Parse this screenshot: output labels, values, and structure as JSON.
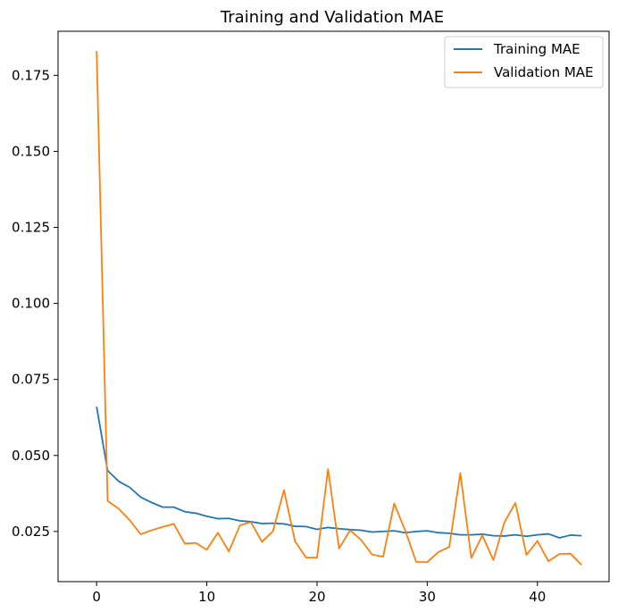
{
  "chart_data": {
    "type": "line",
    "title": "Training and Validation MAE",
    "xlabel": "",
    "ylabel": "",
    "xlim": [
      -3.5,
      46.5
    ],
    "ylim": [
      0.0085,
      0.1895
    ],
    "x_ticks": [
      0,
      10,
      20,
      30,
      40
    ],
    "y_ticks": [
      0.025,
      0.05,
      0.075,
      0.1,
      0.125,
      0.15,
      0.175
    ],
    "y_tick_labels": [
      "0.025",
      "0.050",
      "0.075",
      "0.100",
      "0.125",
      "0.150",
      "0.175"
    ],
    "grid": false,
    "legend_position": "top-right",
    "x": [
      0,
      1,
      2,
      3,
      4,
      5,
      6,
      7,
      8,
      9,
      10,
      11,
      12,
      13,
      14,
      15,
      16,
      17,
      18,
      19,
      20,
      21,
      22,
      23,
      24,
      25,
      26,
      27,
      28,
      29,
      30,
      31,
      32,
      33,
      34,
      35,
      36,
      37,
      38,
      39,
      40,
      41,
      42,
      43,
      44
    ],
    "series": [
      {
        "name": "Training MAE",
        "color": "#1f77b4",
        "values": [
          0.066,
          0.045,
          0.0415,
          0.0395,
          0.0363,
          0.0345,
          0.033,
          0.033,
          0.0315,
          0.031,
          0.03,
          0.0292,
          0.0293,
          0.0285,
          0.0282,
          0.0276,
          0.0277,
          0.0275,
          0.0267,
          0.0266,
          0.0257,
          0.0263,
          0.0259,
          0.0256,
          0.0254,
          0.0248,
          0.025,
          0.0252,
          0.0246,
          0.025,
          0.0252,
          0.0246,
          0.0244,
          0.0239,
          0.0239,
          0.0241,
          0.0236,
          0.0235,
          0.0239,
          0.0234,
          0.0239,
          0.0242,
          0.0229,
          0.0238,
          0.0236
        ]
      },
      {
        "name": "Validation MAE",
        "color": "#ff7f0e",
        "values": [
          0.183,
          0.035,
          0.0325,
          0.0287,
          0.0241,
          0.0254,
          0.0265,
          0.0275,
          0.021,
          0.0212,
          0.019,
          0.0246,
          0.0184,
          0.027,
          0.0281,
          0.0216,
          0.0251,
          0.0386,
          0.0218,
          0.0164,
          0.0164,
          0.0455,
          0.0194,
          0.0254,
          0.0222,
          0.0174,
          0.0167,
          0.0342,
          0.0253,
          0.015,
          0.0149,
          0.0182,
          0.0199,
          0.0442,
          0.0163,
          0.0237,
          0.0156,
          0.028,
          0.0344,
          0.0173,
          0.0219,
          0.0152,
          0.0176,
          0.0177,
          0.014
        ]
      }
    ]
  }
}
